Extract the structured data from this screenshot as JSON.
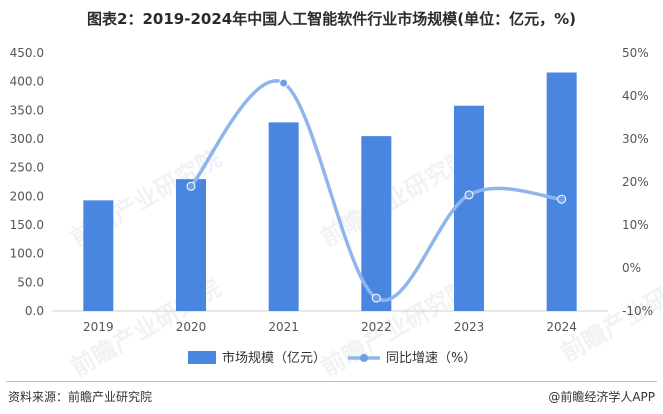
{
  "chart_data": {
    "type": "bar",
    "title": "图表2：2019-2024年中国人工智能软件行业市场规模(单位：亿元，%)",
    "categories": [
      "2019",
      "2020",
      "2021",
      "2022",
      "2023",
      "2024"
    ],
    "series": [
      {
        "name": "市场规模（亿元）",
        "type": "bar",
        "axis": "left",
        "values": [
          193,
          230,
          329,
          305,
          358,
          416
        ]
      },
      {
        "name": "同比增速（%）",
        "type": "line",
        "axis": "right",
        "smooth": true,
        "values": [
          null,
          19,
          43,
          -7,
          17,
          16
        ]
      }
    ],
    "y_left": {
      "ylim": [
        0,
        450
      ],
      "ticks": [
        "0.0",
        "50.0",
        "100.0",
        "150.0",
        "200.0",
        "250.0",
        "300.0",
        "350.0",
        "400.0",
        "450.0"
      ]
    },
    "y_right": {
      "ylim": [
        -10,
        50
      ],
      "ticks": [
        "-10%",
        "0%",
        "10%",
        "20%",
        "30%",
        "40%",
        "50%"
      ]
    },
    "grid": false,
    "legend_position": "bottom",
    "colors": {
      "bar": "#4a86e0",
      "line": "#8fb6ec",
      "marker": "#6c9fe6"
    }
  },
  "watermark": "前瞻产业研究院",
  "footer": {
    "source": "资料来源：前瞻产业研究院",
    "credit": "@前瞻经济学人APP"
  }
}
